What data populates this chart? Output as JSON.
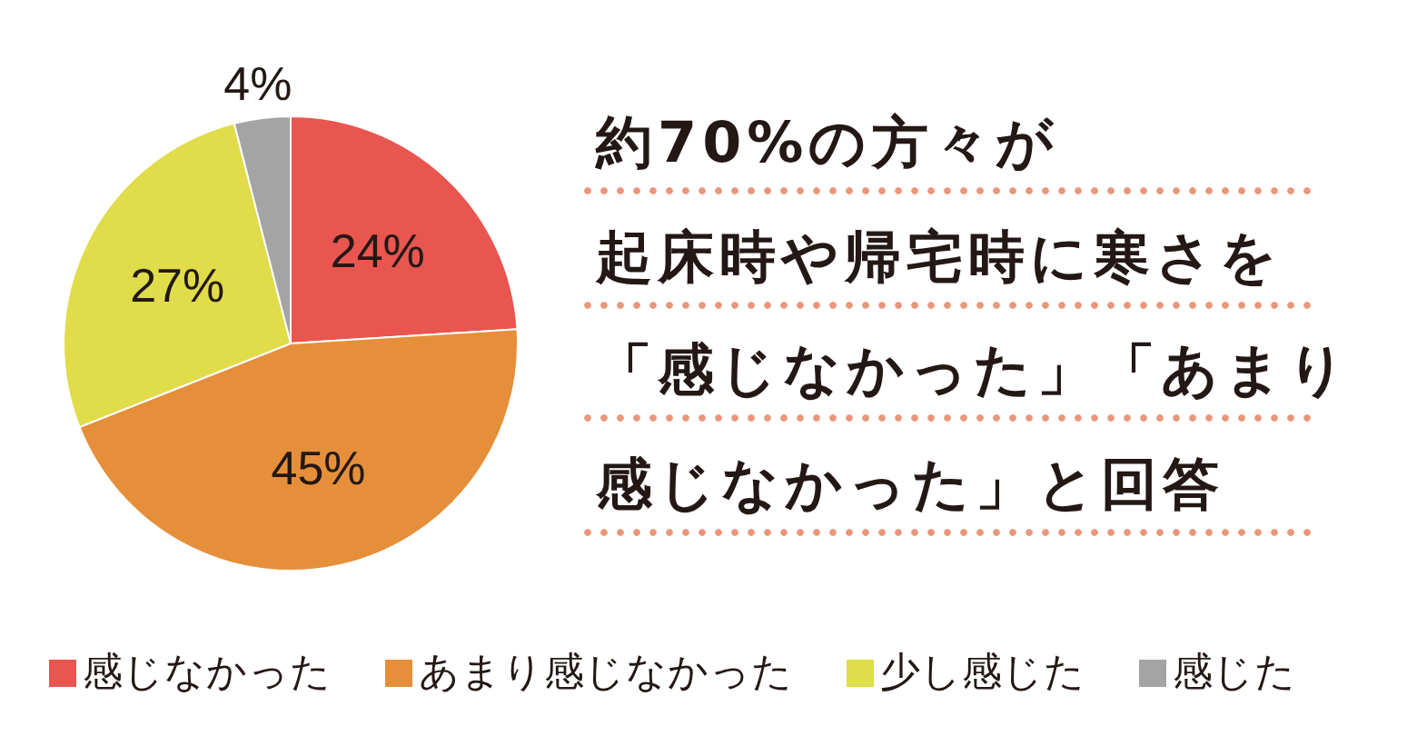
{
  "chart_data": {
    "type": "pie",
    "title": "約70%の方々が起床時や帰宅時に寒さを「感じなかった」「あまり感じなかった」と回答",
    "categories": [
      "感じなかった",
      "あまり感じなかった",
      "少し感じた",
      "感じた"
    ],
    "values": [
      24,
      45,
      27,
      4
    ],
    "colors": [
      "#e9554f",
      "#e58f3a",
      "#e0dc4a",
      "#a4a4a4"
    ],
    "value_labels": [
      "24%",
      "45%",
      "27%",
      "4%"
    ],
    "legend": "bottom"
  }
}
